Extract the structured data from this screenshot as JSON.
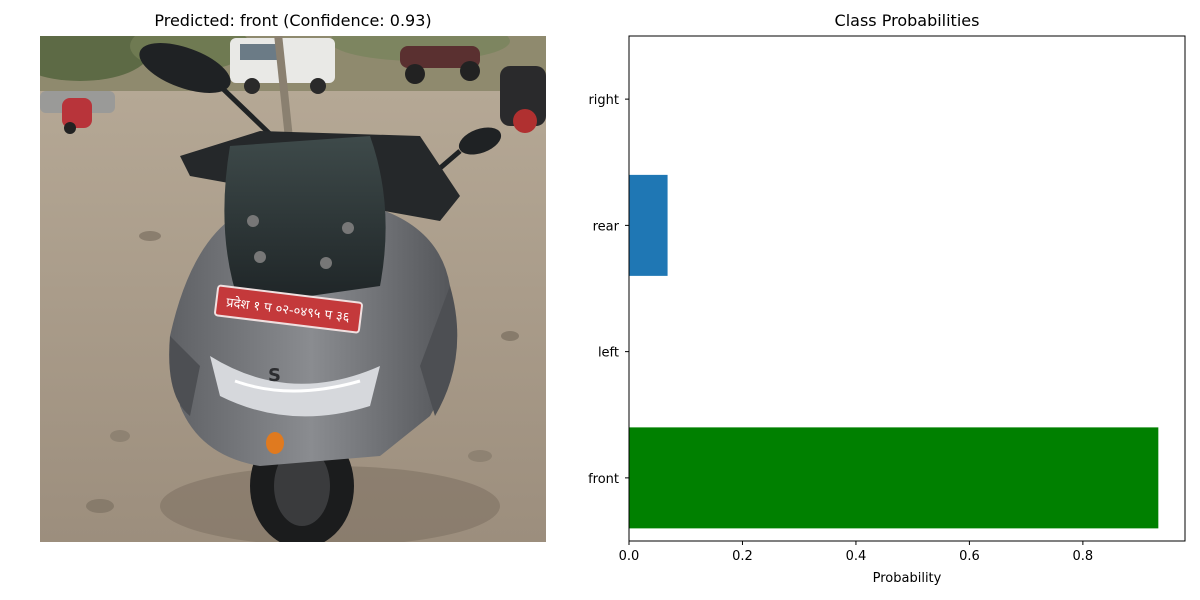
{
  "left_panel": {
    "title": "Predicted: front (Confidence: 0.93)",
    "photo_subject": "grey scooter parked on dirt ground, front view",
    "plate_text": "प्रदेश १ प ०२-०४९५ प ३६"
  },
  "chart_data": {
    "type": "bar",
    "orientation": "horizontal",
    "title": "Class Probabilities",
    "xlabel": "Probability",
    "ylabel": "",
    "categories": [
      "front",
      "left",
      "rear",
      "right"
    ],
    "values": [
      0.933,
      0.0,
      0.068,
      0.0
    ],
    "colors": [
      "#008000",
      "#1f77b4",
      "#1f77b4",
      "#1f77b4"
    ],
    "xlim": [
      0,
      0.98
    ],
    "xticks": [
      0.0,
      0.2,
      0.4,
      0.6,
      0.8
    ],
    "xtick_labels": [
      "0.0",
      "0.2",
      "0.4",
      "0.6",
      "0.8"
    ],
    "grid": false,
    "legend": "none"
  }
}
